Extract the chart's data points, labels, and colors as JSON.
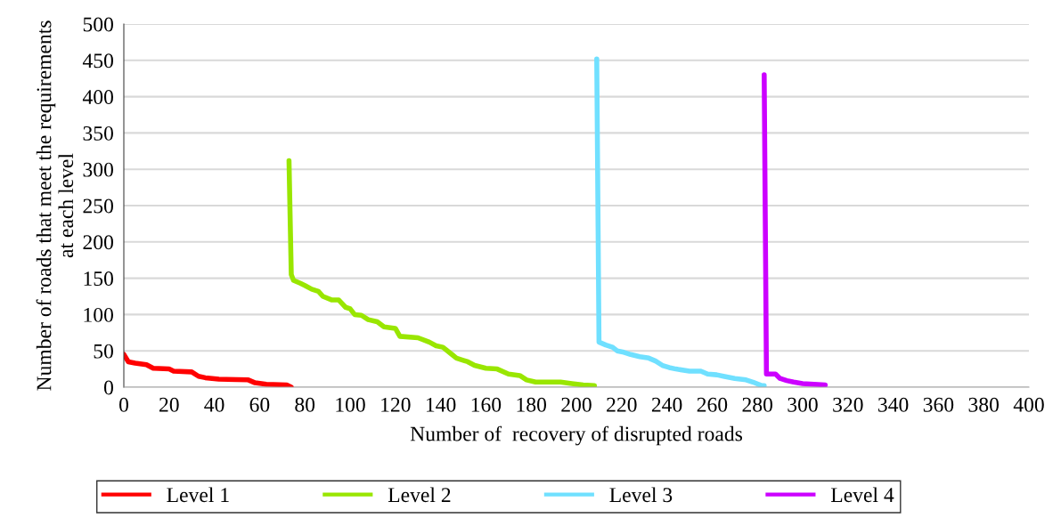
{
  "chart_data": {
    "type": "line",
    "xlabel": "Number of  recovery of disrupted roads",
    "ylabel": "Number of roads that meet the requirements\nat each level",
    "xlim": [
      0,
      400
    ],
    "xticks": [
      0,
      20,
      40,
      60,
      80,
      100,
      120,
      140,
      160,
      180,
      200,
      220,
      240,
      260,
      280,
      300,
      320,
      340,
      360,
      380,
      400
    ],
    "ylim": [
      0,
      500
    ],
    "yticks": [
      0,
      50,
      100,
      150,
      200,
      250,
      300,
      350,
      400,
      450,
      500
    ],
    "grid": "y",
    "legend": "bottom",
    "marker": "none",
    "line_style": "solid",
    "series": [
      {
        "name": "Level 1",
        "color": "#ff0000",
        "x": [
          0,
          2,
          5,
          10,
          13,
          20,
          22,
          30,
          33,
          36,
          42,
          55,
          58,
          63,
          72,
          74
        ],
        "values": [
          45,
          35,
          33,
          31,
          26,
          25,
          22,
          21,
          15,
          13,
          11,
          10,
          6,
          4,
          3,
          0
        ]
      },
      {
        "name": "Level 2",
        "color": "#99e600",
        "x": [
          73,
          74,
          75,
          78,
          80,
          83,
          86,
          88,
          92,
          95,
          98,
          100,
          102,
          105,
          108,
          112,
          115,
          120,
          122,
          130,
          135,
          138,
          141,
          145,
          147,
          150,
          152,
          155,
          160,
          165,
          170,
          175,
          178,
          182,
          193,
          198,
          203,
          208
        ],
        "values": [
          312,
          155,
          147,
          143,
          140,
          135,
          132,
          125,
          120,
          120,
          110,
          108,
          100,
          99,
          93,
          90,
          83,
          81,
          70,
          68,
          62,
          57,
          55,
          45,
          40,
          37,
          35,
          30,
          26,
          25,
          18,
          16,
          10,
          7,
          7,
          5,
          3,
          2
        ]
      },
      {
        "name": "Level 3",
        "color": "#70e0ff",
        "x": [
          209,
          210,
          213,
          216,
          218,
          221,
          224,
          228,
          232,
          235,
          238,
          241,
          244,
          250,
          255,
          258,
          262,
          265,
          270,
          275,
          278,
          282,
          283
        ],
        "values": [
          452,
          62,
          58,
          55,
          50,
          48,
          45,
          42,
          40,
          36,
          30,
          27,
          25,
          22,
          22,
          18,
          17,
          15,
          12,
          10,
          7,
          2,
          2
        ]
      },
      {
        "name": "Level 4",
        "color": "#cc00ff",
        "x": [
          283,
          284,
          288,
          290,
          293,
          296,
          300,
          310
        ],
        "values": [
          430,
          18,
          18,
          12,
          9,
          7,
          5,
          3
        ]
      }
    ]
  }
}
